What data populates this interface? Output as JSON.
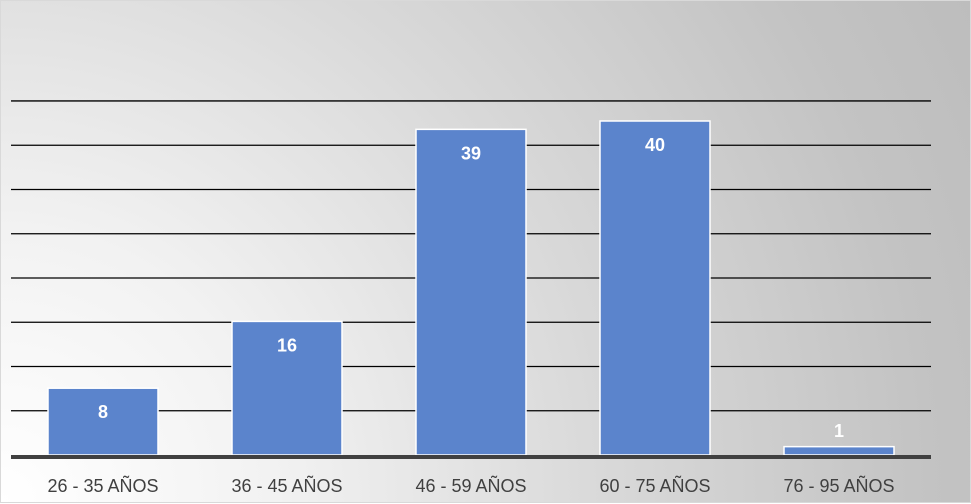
{
  "chart_data": {
    "type": "bar",
    "categories": [
      "26 - 35 AÑOS",
      "36 - 45 AÑOS",
      "46 - 59 AÑOS",
      "60 - 75 AÑOS",
      "76 - 95 AÑOS"
    ],
    "values": [
      8,
      16,
      39,
      40,
      1
    ],
    "data_labels": [
      "8",
      "16",
      "39",
      "40",
      "1"
    ],
    "ylim": [
      0,
      42.5
    ],
    "gridline_step": 5.3,
    "grid": true,
    "legend": "none",
    "colors": {
      "bar": "#5b84cc",
      "bar_edge": "#ffffff",
      "gridline": "#000000",
      "axis": "#404040",
      "label_text": "#404040",
      "data_label_text": "#ffffff"
    }
  }
}
